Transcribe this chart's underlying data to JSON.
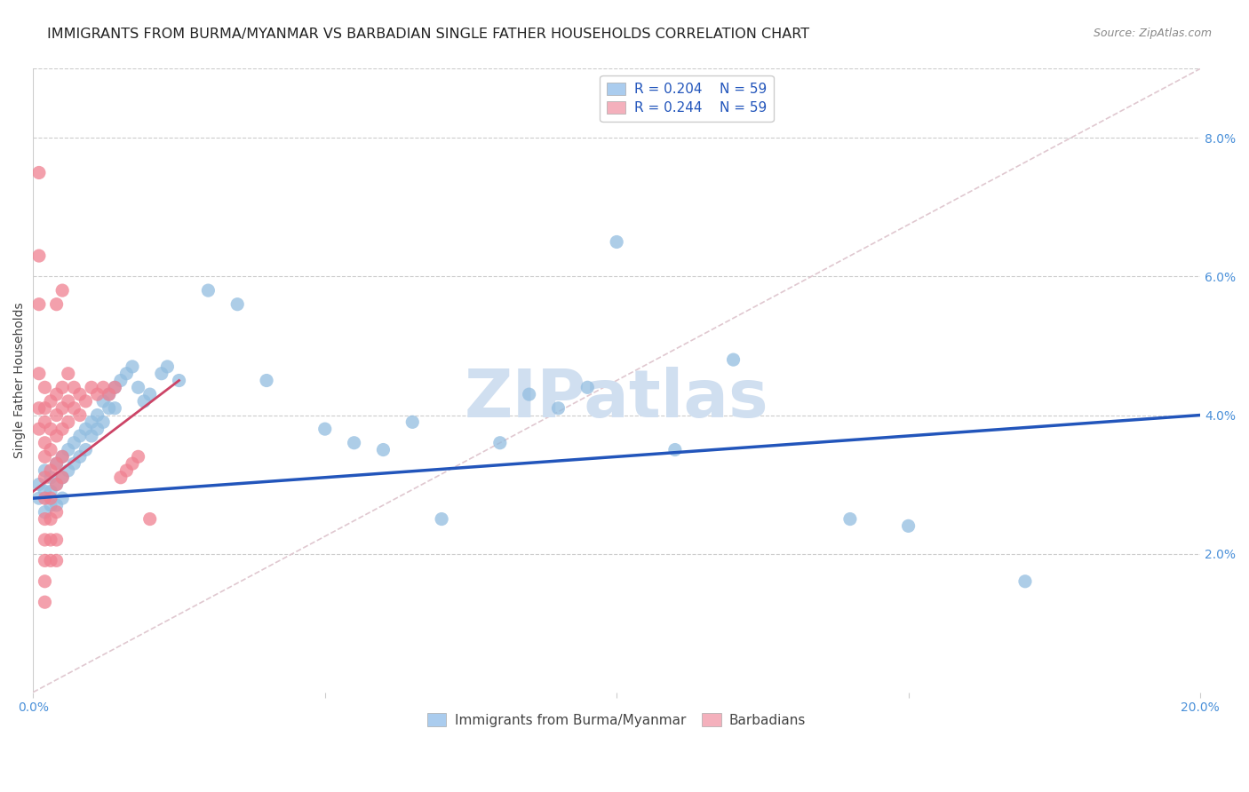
{
  "title": "IMMIGRANTS FROM BURMA/MYANMAR VS BARBADIAN SINGLE FATHER HOUSEHOLDS CORRELATION CHART",
  "source": "Source: ZipAtlas.com",
  "ylabel": "Single Father Households",
  "xlim": [
    0.0,
    0.2
  ],
  "ylim": [
    0.0,
    0.09
  ],
  "blue_scatter": [
    [
      0.001,
      0.03
    ],
    [
      0.001,
      0.028
    ],
    [
      0.002,
      0.032
    ],
    [
      0.002,
      0.029
    ],
    [
      0.002,
      0.026
    ],
    [
      0.003,
      0.031
    ],
    [
      0.003,
      0.029
    ],
    [
      0.003,
      0.027
    ],
    [
      0.004,
      0.033
    ],
    [
      0.004,
      0.03
    ],
    [
      0.004,
      0.027
    ],
    [
      0.005,
      0.034
    ],
    [
      0.005,
      0.031
    ],
    [
      0.005,
      0.028
    ],
    [
      0.006,
      0.035
    ],
    [
      0.006,
      0.032
    ],
    [
      0.007,
      0.036
    ],
    [
      0.007,
      0.033
    ],
    [
      0.008,
      0.037
    ],
    [
      0.008,
      0.034
    ],
    [
      0.009,
      0.038
    ],
    [
      0.009,
      0.035
    ],
    [
      0.01,
      0.039
    ],
    [
      0.01,
      0.037
    ],
    [
      0.011,
      0.04
    ],
    [
      0.011,
      0.038
    ],
    [
      0.012,
      0.042
    ],
    [
      0.012,
      0.039
    ],
    [
      0.013,
      0.043
    ],
    [
      0.013,
      0.041
    ],
    [
      0.014,
      0.044
    ],
    [
      0.014,
      0.041
    ],
    [
      0.015,
      0.045
    ],
    [
      0.016,
      0.046
    ],
    [
      0.017,
      0.047
    ],
    [
      0.018,
      0.044
    ],
    [
      0.019,
      0.042
    ],
    [
      0.02,
      0.043
    ],
    [
      0.022,
      0.046
    ],
    [
      0.023,
      0.047
    ],
    [
      0.025,
      0.045
    ],
    [
      0.03,
      0.058
    ],
    [
      0.035,
      0.056
    ],
    [
      0.04,
      0.045
    ],
    [
      0.05,
      0.038
    ],
    [
      0.055,
      0.036
    ],
    [
      0.06,
      0.035
    ],
    [
      0.065,
      0.039
    ],
    [
      0.07,
      0.025
    ],
    [
      0.08,
      0.036
    ],
    [
      0.085,
      0.043
    ],
    [
      0.09,
      0.041
    ],
    [
      0.095,
      0.044
    ],
    [
      0.1,
      0.065
    ],
    [
      0.11,
      0.035
    ],
    [
      0.12,
      0.048
    ],
    [
      0.14,
      0.025
    ],
    [
      0.15,
      0.024
    ],
    [
      0.17,
      0.016
    ]
  ],
  "pink_scatter": [
    [
      0.001,
      0.075
    ],
    [
      0.001,
      0.063
    ],
    [
      0.001,
      0.056
    ],
    [
      0.001,
      0.046
    ],
    [
      0.001,
      0.041
    ],
    [
      0.001,
      0.038
    ],
    [
      0.002,
      0.044
    ],
    [
      0.002,
      0.041
    ],
    [
      0.002,
      0.039
    ],
    [
      0.002,
      0.036
    ],
    [
      0.002,
      0.034
    ],
    [
      0.002,
      0.031
    ],
    [
      0.002,
      0.028
    ],
    [
      0.002,
      0.025
    ],
    [
      0.002,
      0.022
    ],
    [
      0.002,
      0.019
    ],
    [
      0.002,
      0.016
    ],
    [
      0.002,
      0.013
    ],
    [
      0.003,
      0.042
    ],
    [
      0.003,
      0.038
    ],
    [
      0.003,
      0.035
    ],
    [
      0.003,
      0.032
    ],
    [
      0.003,
      0.028
    ],
    [
      0.003,
      0.025
    ],
    [
      0.003,
      0.022
    ],
    [
      0.003,
      0.019
    ],
    [
      0.004,
      0.056
    ],
    [
      0.004,
      0.043
    ],
    [
      0.004,
      0.04
    ],
    [
      0.004,
      0.037
    ],
    [
      0.004,
      0.033
    ],
    [
      0.004,
      0.03
    ],
    [
      0.004,
      0.026
    ],
    [
      0.004,
      0.022
    ],
    [
      0.004,
      0.019
    ],
    [
      0.005,
      0.058
    ],
    [
      0.005,
      0.044
    ],
    [
      0.005,
      0.041
    ],
    [
      0.005,
      0.038
    ],
    [
      0.005,
      0.034
    ],
    [
      0.005,
      0.031
    ],
    [
      0.006,
      0.046
    ],
    [
      0.006,
      0.042
    ],
    [
      0.006,
      0.039
    ],
    [
      0.007,
      0.044
    ],
    [
      0.007,
      0.041
    ],
    [
      0.008,
      0.043
    ],
    [
      0.008,
      0.04
    ],
    [
      0.009,
      0.042
    ],
    [
      0.01,
      0.044
    ],
    [
      0.011,
      0.043
    ],
    [
      0.012,
      0.044
    ],
    [
      0.013,
      0.043
    ],
    [
      0.014,
      0.044
    ],
    [
      0.015,
      0.031
    ],
    [
      0.016,
      0.032
    ],
    [
      0.017,
      0.033
    ],
    [
      0.018,
      0.034
    ],
    [
      0.02,
      0.025
    ]
  ],
  "blue_line_x": [
    0.0,
    0.2
  ],
  "blue_line_y": [
    0.028,
    0.04
  ],
  "pink_line_x": [
    0.0,
    0.025
  ],
  "pink_line_y": [
    0.029,
    0.045
  ],
  "diagonal_line_x": [
    0.0,
    0.2
  ],
  "diagonal_line_y": [
    0.0,
    0.09
  ],
  "scatter_color_blue": "#92bde0",
  "scatter_color_pink": "#f08090",
  "line_color_blue": "#2255bb",
  "line_color_pink": "#cc4466",
  "diagonal_color": "#e0c8d0",
  "legend_box_blue": "#aaccee",
  "legend_box_pink": "#f4b0bc",
  "legend_text_color": "#2255bb",
  "watermark": "ZIPatlas",
  "watermark_color": "#d0dff0",
  "axis_label_color": "#4a90d9",
  "ylabel_color": "#444444",
  "title_color": "#222222",
  "source_color": "#888888",
  "background_color": "#ffffff",
  "title_fontsize": 11.5,
  "source_fontsize": 9,
  "tick_fontsize": 10,
  "legend_fontsize": 11
}
